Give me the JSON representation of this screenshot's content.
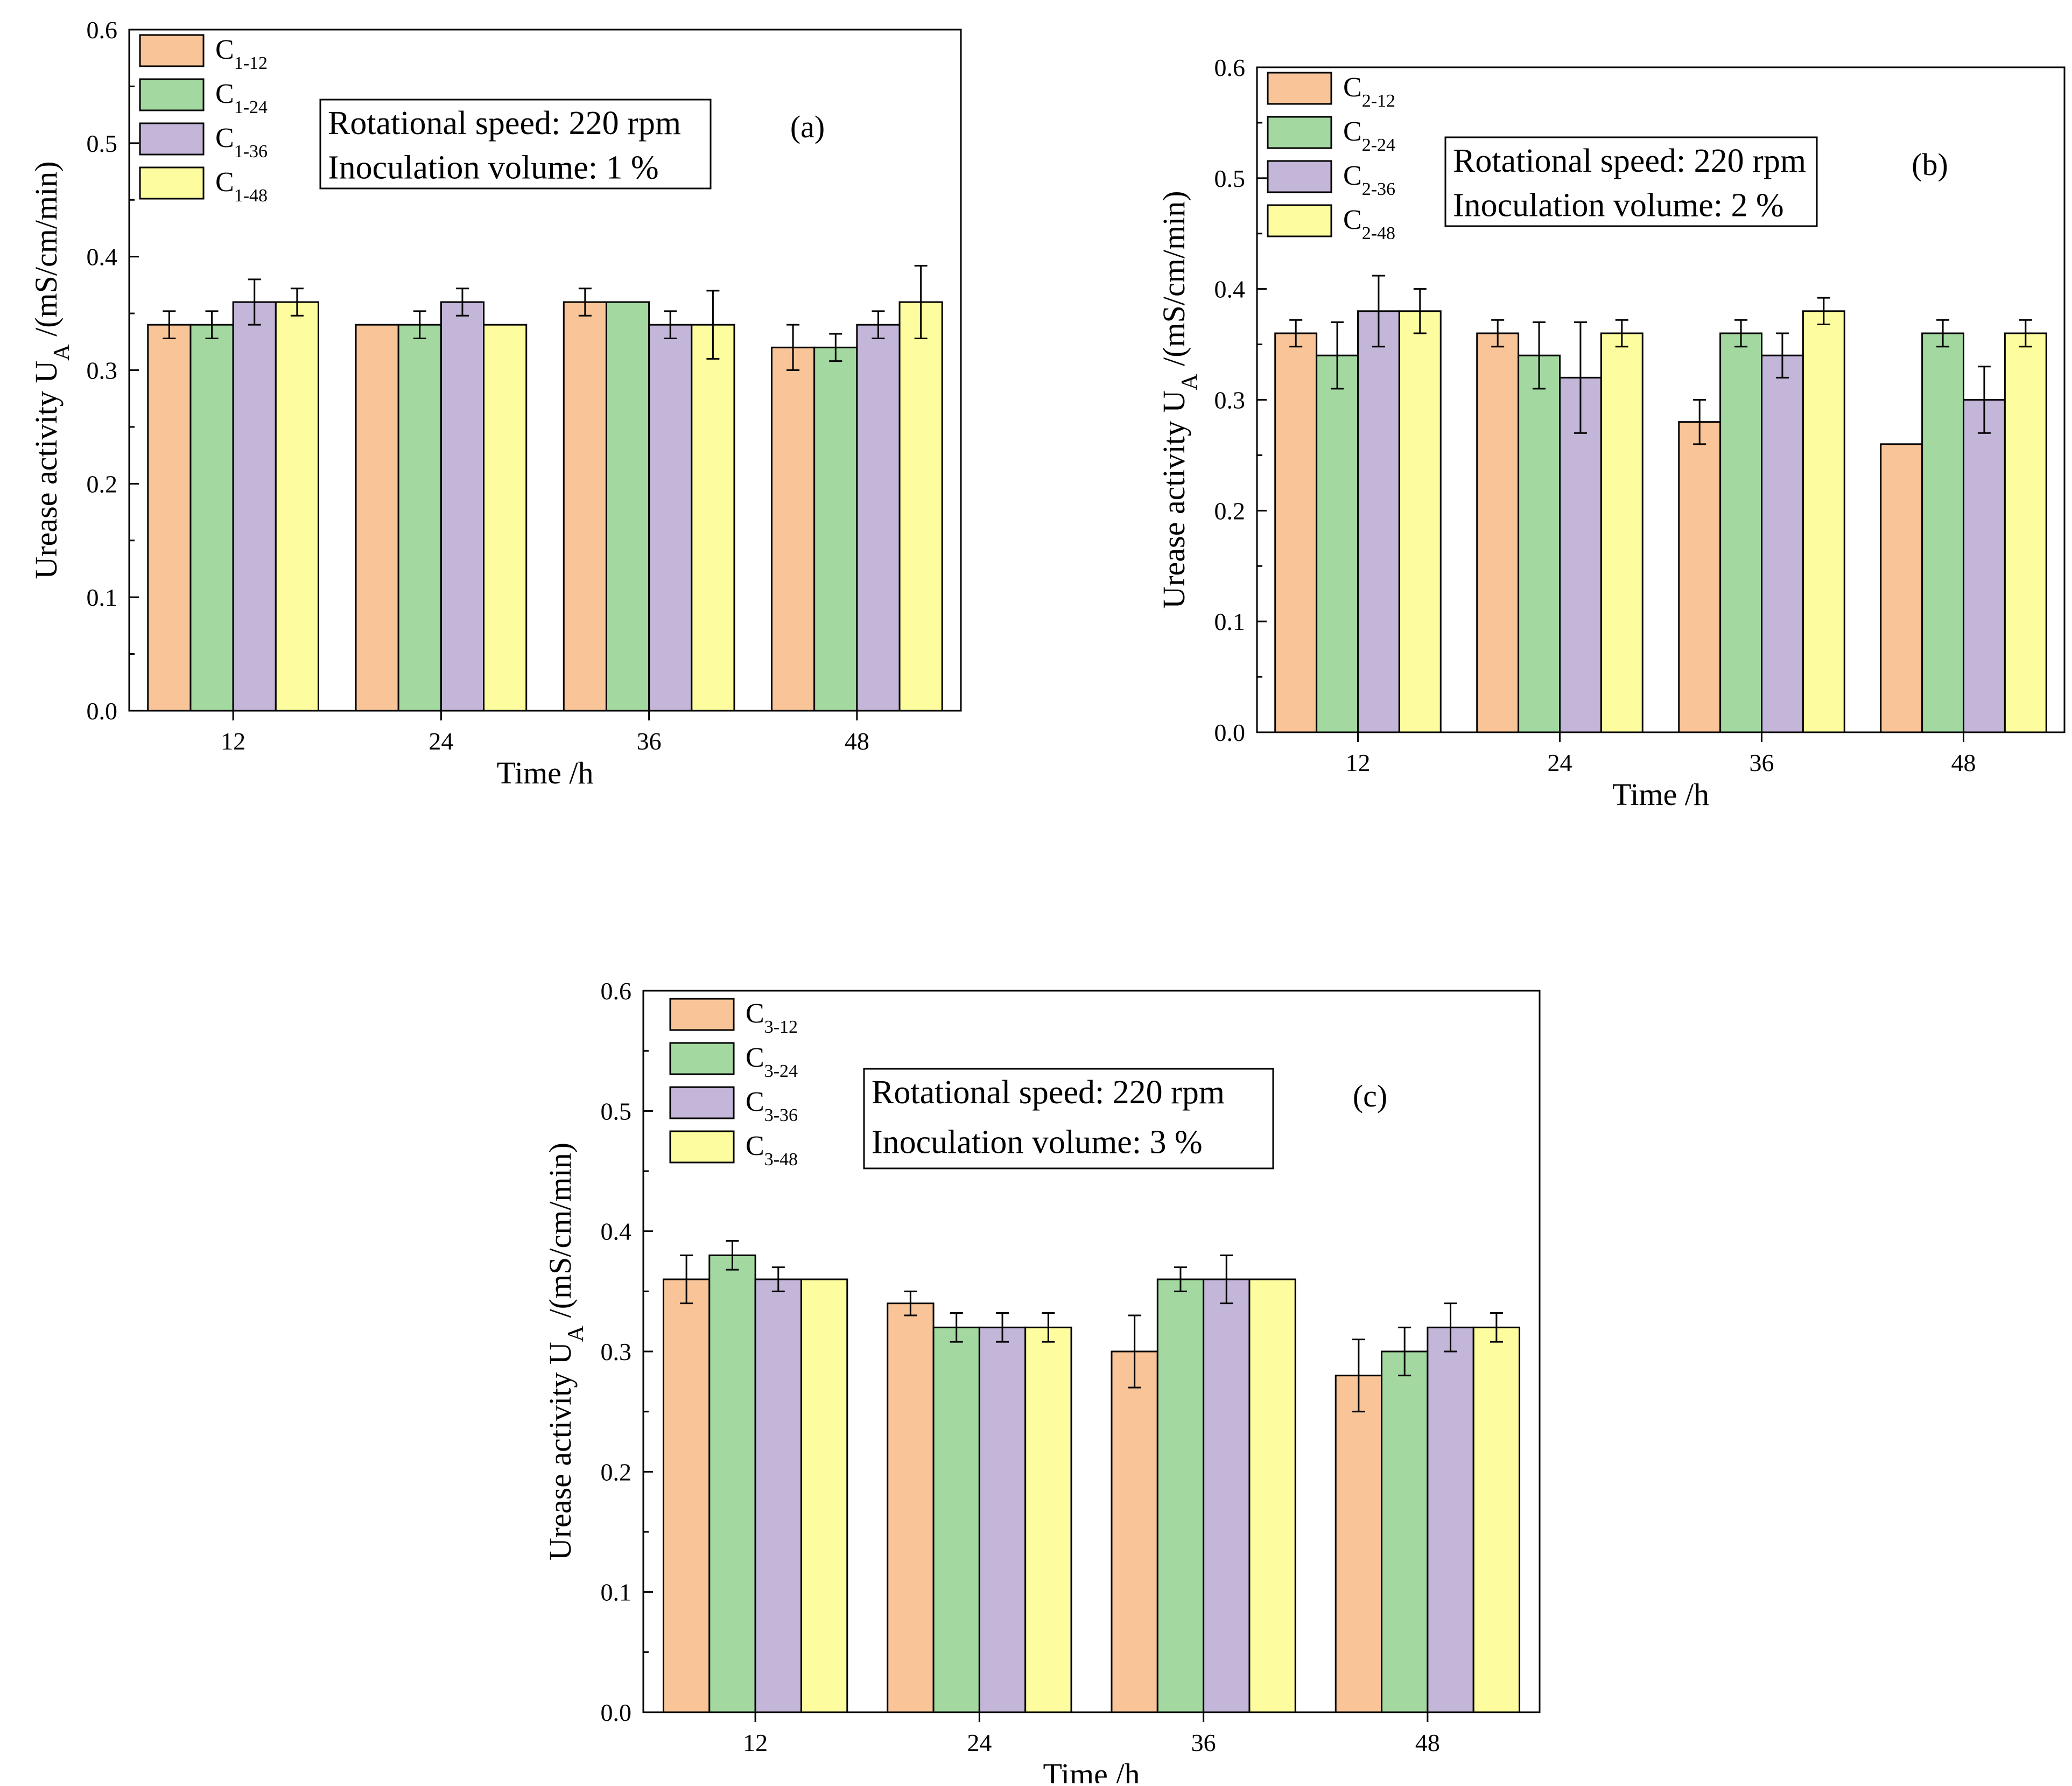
{
  "figure": {
    "description": "Urease activity bar charts"
  },
  "colors": {
    "series": [
      "#f9c598",
      "#a3d9a0",
      "#c3b6d9",
      "#fdfd9f"
    ],
    "stroke": "#000000"
  },
  "chart_data": [
    {
      "type": "bar",
      "panel_label": "(a)",
      "title": "",
      "xlabel": "Time /h",
      "ylabel": "Urease activity U",
      "ylabel_sub": "A",
      "ylabel_unit": " /(mS/cm/min)",
      "categories": [
        "12",
        "24",
        "36",
        "48"
      ],
      "ylim": [
        0,
        0.6
      ],
      "yticks": [
        "0.0",
        "0.1",
        "0.2",
        "0.3",
        "0.4",
        "0.5",
        "0.6"
      ],
      "annotation": [
        "Rotational speed: 220 rpm",
        "Inoculation volume: 1 %"
      ],
      "legend_position": "top-left",
      "series": [
        {
          "name": "C",
          "sub": "1-12",
          "values": [
            0.34,
            0.34,
            0.36,
            0.32
          ],
          "errors": [
            0.012,
            0.0,
            0.012,
            0.02
          ]
        },
        {
          "name": "C",
          "sub": "1-24",
          "values": [
            0.34,
            0.34,
            0.36,
            0.32
          ],
          "errors": [
            0.012,
            0.012,
            0.0,
            0.012
          ]
        },
        {
          "name": "C",
          "sub": "1-36",
          "values": [
            0.36,
            0.36,
            0.34,
            0.34
          ],
          "errors": [
            0.02,
            0.012,
            0.012,
            0.012
          ]
        },
        {
          "name": "C",
          "sub": "1-48",
          "values": [
            0.36,
            0.34,
            0.34,
            0.36
          ],
          "errors": [
            0.012,
            0.0,
            0.03,
            0.032
          ]
        }
      ]
    },
    {
      "type": "bar",
      "panel_label": "(b)",
      "title": "",
      "xlabel": "Time /h",
      "ylabel": "Urease activity U",
      "ylabel_sub": "A",
      "ylabel_unit": " /(mS/cm/min)",
      "categories": [
        "12",
        "24",
        "36",
        "48"
      ],
      "ylim": [
        0,
        0.6
      ],
      "yticks": [
        "0.0",
        "0.1",
        "0.2",
        "0.3",
        "0.4",
        "0.5",
        "0.6"
      ],
      "annotation": [
        "Rotational speed: 220 rpm",
        "Inoculation volume: 2 %"
      ],
      "legend_position": "top-left",
      "series": [
        {
          "name": "C",
          "sub": "2-12",
          "values": [
            0.36,
            0.36,
            0.28,
            0.26
          ],
          "errors": [
            0.012,
            0.012,
            0.02,
            0.0
          ]
        },
        {
          "name": "C",
          "sub": "2-24",
          "values": [
            0.34,
            0.34,
            0.36,
            0.36
          ],
          "errors": [
            0.03,
            0.03,
            0.012,
            0.012
          ]
        },
        {
          "name": "C",
          "sub": "2-36",
          "values": [
            0.38,
            0.32,
            0.34,
            0.3
          ],
          "errors": [
            0.032,
            0.05,
            0.02,
            0.03
          ]
        },
        {
          "name": "C",
          "sub": "2-48",
          "values": [
            0.38,
            0.36,
            0.38,
            0.36
          ],
          "errors": [
            0.02,
            0.012,
            0.012,
            0.012
          ]
        }
      ]
    },
    {
      "type": "bar",
      "panel_label": "(c)",
      "title": "",
      "xlabel": "Time /h",
      "ylabel": "Urease activity U",
      "ylabel_sub": "A",
      "ylabel_unit": " /(mS/cm/min)",
      "categories": [
        "12",
        "24",
        "36",
        "48"
      ],
      "ylim": [
        0,
        0.6
      ],
      "yticks": [
        "0.0",
        "0.1",
        "0.2",
        "0.3",
        "0.4",
        "0.5",
        "0.6"
      ],
      "annotation": [
        "Rotational speed: 220 rpm",
        "Inoculation volume: 3 %"
      ],
      "legend_position": "top-left",
      "series": [
        {
          "name": "C",
          "sub": "3-12",
          "values": [
            0.36,
            0.34,
            0.3,
            0.28
          ],
          "errors": [
            0.02,
            0.01,
            0.03,
            0.03
          ]
        },
        {
          "name": "C",
          "sub": "3-24",
          "values": [
            0.38,
            0.32,
            0.36,
            0.3
          ],
          "errors": [
            0.012,
            0.012,
            0.01,
            0.02
          ]
        },
        {
          "name": "C",
          "sub": "3-36",
          "values": [
            0.36,
            0.32,
            0.36,
            0.32
          ],
          "errors": [
            0.01,
            0.012,
            0.02,
            0.02
          ]
        },
        {
          "name": "C",
          "sub": "3-48",
          "values": [
            0.36,
            0.32,
            0.36,
            0.32
          ],
          "errors": [
            0.0,
            0.012,
            0.0,
            0.012
          ]
        }
      ]
    }
  ]
}
